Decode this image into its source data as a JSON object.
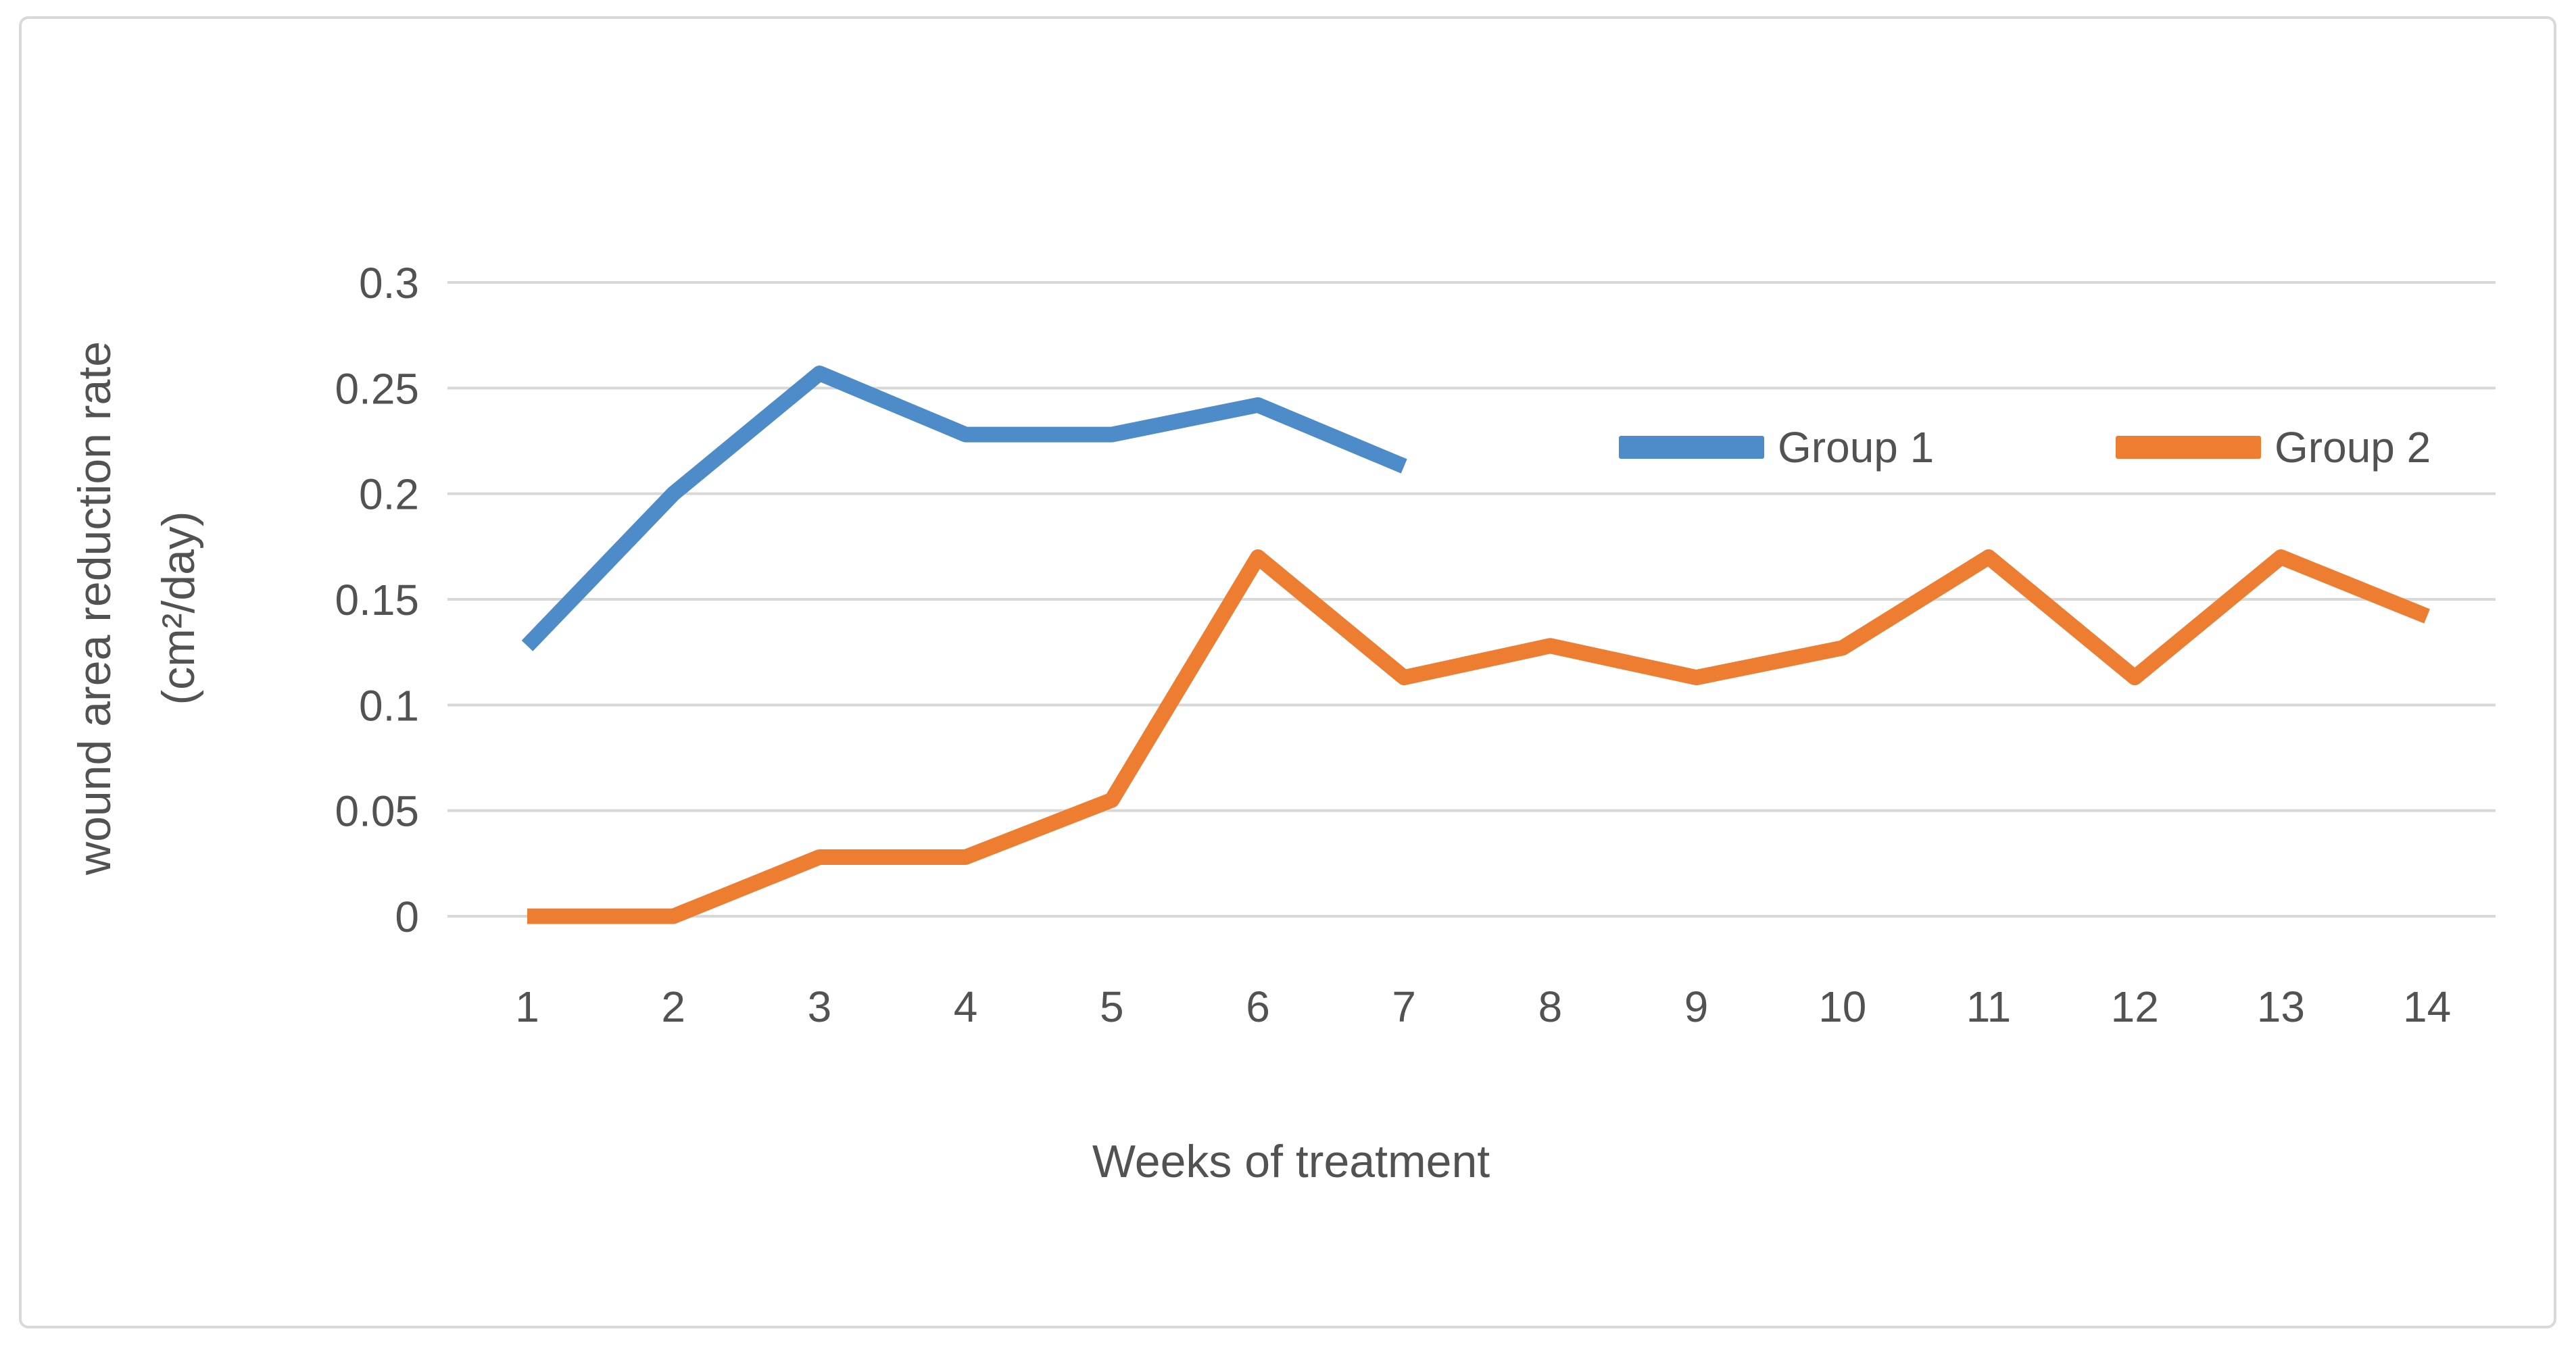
{
  "chart_data": {
    "type": "line",
    "title": "",
    "xlabel": "Weeks of treatment",
    "ylabel_line1": "wound area reduction rate",
    "ylabel_line2": "(cm²/day)",
    "x": [
      1,
      2,
      3,
      4,
      5,
      6,
      7,
      8,
      9,
      10,
      11,
      12,
      13,
      14
    ],
    "xtick_labels": [
      "1",
      "2",
      "3",
      "4",
      "5",
      "6",
      "7",
      "8",
      "9",
      "10",
      "11",
      "12",
      "13",
      "14"
    ],
    "yticks": [
      0,
      0.05,
      0.1,
      0.15,
      0.2,
      0.25,
      0.3
    ],
    "ytick_labels": [
      "0",
      "0.05",
      "0.1",
      "0.15",
      "0.2",
      "0.25",
      "0.3"
    ],
    "ylim": [
      0,
      0.3
    ],
    "grid": true,
    "legend_position": "inside-top-right",
    "series": [
      {
        "name": "Group 1",
        "color": "#4D8CC9",
        "values": [
          0.128,
          0.2,
          0.257,
          0.228,
          0.228,
          0.242,
          0.213
        ]
      },
      {
        "name": "Group 2",
        "color": "#ED7D31",
        "values": [
          0,
          0,
          0.028,
          0.028,
          0.055,
          0.17,
          0.113,
          0.128,
          0.113,
          0.127,
          0.17,
          0.113,
          0.17,
          0.142
        ]
      }
    ]
  },
  "colors": {
    "gridline": "#D8D8D8",
    "frame_border": "#D9D9D9",
    "axis_text": "#525252",
    "background": "#FFFFFF"
  }
}
